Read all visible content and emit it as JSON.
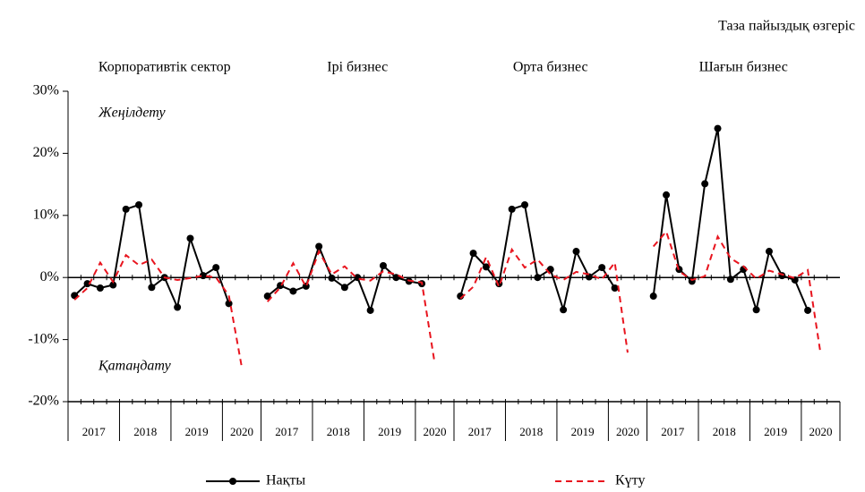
{
  "title": "Таза пайыздық өзгеріс",
  "annotations": [
    "Жеңілдету",
    "Қатаңдату"
  ],
  "chart_data": [
    {
      "type": "line",
      "title": "Корпоративтік сектор",
      "categories": [
        "2017",
        null,
        null,
        null,
        "2018",
        null,
        null,
        null,
        "2019",
        null,
        null,
        null,
        "2020",
        null
      ],
      "ylim": [
        -20,
        30
      ],
      "yticks": [
        {
          "value": 30,
          "label": "30%"
        },
        {
          "value": 20,
          "label": "20%"
        },
        {
          "value": 10,
          "label": "10%"
        },
        {
          "value": 0,
          "label": "0%"
        },
        {
          "value": -10,
          "label": "-10%"
        },
        {
          "value": -20,
          "label": "-20%"
        }
      ],
      "series": [
        {
          "name": "Нақты",
          "color": "#000000",
          "marker": "circle",
          "values": [
            -2.9,
            -1,
            -1.7,
            -1.2,
            11,
            11.7,
            -1.6,
            0,
            -4.8,
            6.3,
            0.3,
            1.6,
            -4.2,
            null
          ]
        },
        {
          "name": "Күту",
          "color": "#e8141e",
          "dash": true,
          "values": [
            -3.6,
            -1.7,
            2.4,
            -0.7,
            3.6,
            2,
            2.9,
            0,
            -0.4,
            -0.1,
            0.3,
            0,
            -2.9,
            -14.4
          ]
        }
      ]
    },
    {
      "type": "line",
      "title": "Ірі бизнес",
      "categories": [
        "2017",
        null,
        null,
        null,
        "2018",
        null,
        null,
        null,
        "2019",
        null,
        null,
        null,
        "2020",
        null
      ],
      "ylim": [
        -20,
        30
      ],
      "series": [
        {
          "name": "Нақты",
          "color": "#000000",
          "marker": "circle",
          "values": [
            -3,
            -1.3,
            -2.2,
            -1.4,
            5,
            -0.1,
            -1.6,
            0,
            -5.3,
            1.9,
            0,
            -0.6,
            -1,
            null
          ]
        },
        {
          "name": "Күту",
          "color": "#e8141e",
          "dash": true,
          "values": [
            -3.9,
            -1.6,
            2.3,
            -1.5,
            4.2,
            0.5,
            1.8,
            -0.2,
            -0.5,
            1,
            0.5,
            -0.5,
            -0.8,
            -13.8
          ]
        }
      ]
    },
    {
      "type": "line",
      "title": "Орта бизнес",
      "categories": [
        "2017",
        null,
        null,
        null,
        "2018",
        null,
        null,
        null,
        "2019",
        null,
        null,
        null,
        "2020",
        null
      ],
      "ylim": [
        -20,
        30
      ],
      "series": [
        {
          "name": "Нақты",
          "color": "#000000",
          "marker": "circle",
          "values": [
            -3,
            3.9,
            1.7,
            -1,
            11,
            11.7,
            0,
            1.3,
            -5.2,
            4.2,
            0.1,
            1.6,
            -1.7,
            null
          ]
        },
        {
          "name": "Күту",
          "color": "#e8141e",
          "dash": true,
          "values": [
            -3.4,
            -1.5,
            3.3,
            -1.5,
            4.5,
            1.6,
            2.9,
            0.5,
            -0.4,
            0.9,
            0.5,
            -0.3,
            2.4,
            -12.1
          ]
        }
      ]
    },
    {
      "type": "line",
      "title": "Шағын бизнес",
      "categories": [
        "2017",
        null,
        null,
        null,
        "2018",
        null,
        null,
        null,
        "2019",
        null,
        null,
        null,
        "2020",
        null
      ],
      "ylim": [
        -20,
        30
      ],
      "series": [
        {
          "name": "Нақты",
          "color": "#000000",
          "marker": "circle",
          "values": [
            -3,
            13.3,
            1.3,
            -0.6,
            15.1,
            24,
            -0.3,
            1.3,
            -5.2,
            4.2,
            0.3,
            -0.4,
            -5.3,
            null
          ]
        },
        {
          "name": "Күту",
          "color": "#e8141e",
          "dash": true,
          "values": [
            5,
            7.4,
            1,
            -0.4,
            0.2,
            6.6,
            3.1,
            1.8,
            -0.2,
            1.1,
            0.5,
            -0.1,
            1.2,
            -12.3
          ]
        }
      ]
    }
  ]
}
